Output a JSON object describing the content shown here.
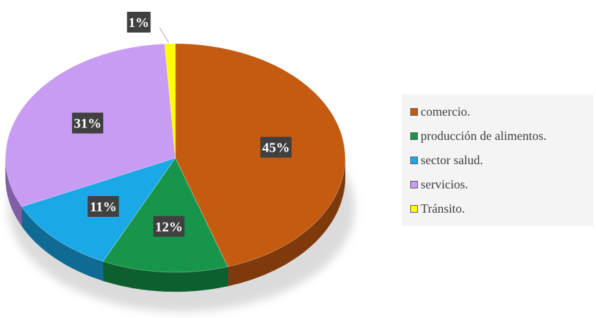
{
  "chart_data": {
    "type": "pie",
    "title": "",
    "slices": [
      {
        "name": "comercio.",
        "value": 45,
        "label": "45%",
        "color": "#c55a11",
        "side": "#7f3a0b"
      },
      {
        "name": "producción de alimentos.",
        "value": 12,
        "label": "12%",
        "color": "#17954a",
        "side": "#0e5f2f"
      },
      {
        "name": "sector salud.",
        "value": 11,
        "label": "11%",
        "color": "#1aa9e6",
        "side": "#0f6b94"
      },
      {
        "name": "servicios.",
        "value": 31,
        "label": "31%",
        "color": "#c89cf3",
        "side": "#7f5ea3"
      },
      {
        "name": "Tránsito.",
        "value": 1,
        "label": "1%",
        "color": "#ffff00",
        "side": "#b3b300"
      }
    ],
    "legend": {
      "position": "right",
      "items": [
        "comercio.",
        "producción de alimentos.",
        "sector salud.",
        "servicios.",
        "Tránsito."
      ]
    },
    "label_box_color": "#404040",
    "label_text_color": "#ffffff"
  }
}
